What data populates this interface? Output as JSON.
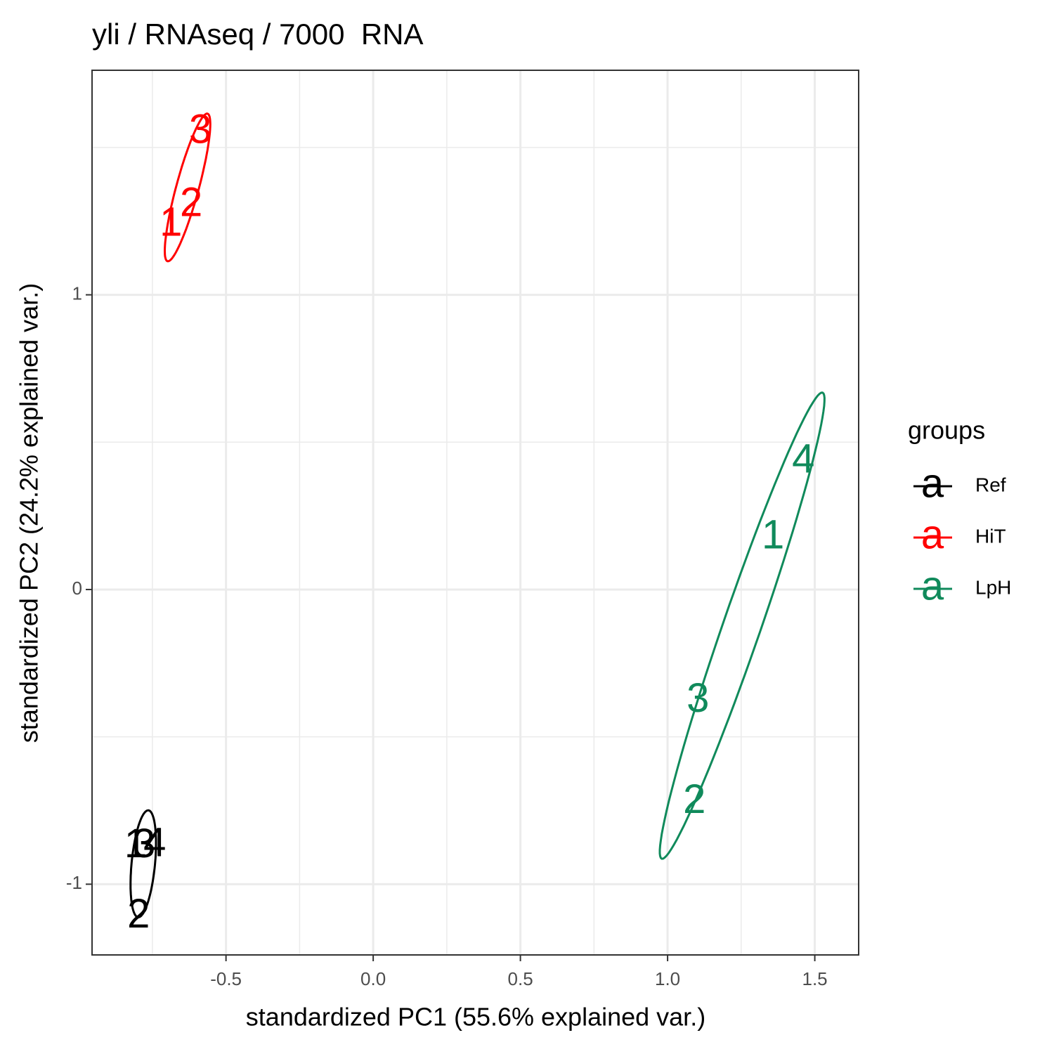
{
  "chart_data": {
    "type": "text-scatter",
    "title": "yli / RNAseq / 7000  RNA",
    "x_label": "standardized PC1 (55.6% explained var.)",
    "y_label": "standardized PC2 (24.2% explained var.)",
    "legend_title": "groups",
    "legend_key": "a",
    "legend_position": "right",
    "grid": true,
    "ellipse": true,
    "xlim": [
      -0.955,
      1.649
    ],
    "ylim": [
      -1.24,
      1.762
    ],
    "xticks": [
      -0.5,
      {
        "value": 0,
        "label": "0.0"
      },
      0.5,
      {
        "value": 1,
        "label": "1.0"
      },
      1.5
    ],
    "yticks": [
      -1,
      0,
      1
    ],
    "x_minor_ticks": [
      -0.75,
      -0.25,
      0.25,
      0.75,
      1.25
    ],
    "y_minor_ticks": [
      -0.5,
      0.5,
      1.5
    ],
    "series": [
      {
        "name": "Ref",
        "color": "#000000",
        "labels": [
          "1",
          "3",
          "4",
          "2"
        ],
        "x": [
          -0.807,
          -0.778,
          -0.742,
          -0.797
        ],
        "y": [
          -0.872,
          -0.872,
          -0.868,
          -1.111
        ]
      },
      {
        "name": "HiT",
        "color": "#ff0000",
        "labels": [
          "1",
          "2",
          "3"
        ],
        "x": [
          -0.687,
          -0.618,
          -0.587
        ],
        "y": [
          1.237,
          1.304,
          1.552
        ]
      },
      {
        "name": "LpH",
        "color": "#108a5b",
        "labels": [
          "4",
          "1",
          "3",
          "2"
        ],
        "x": [
          1.461,
          1.358,
          1.103,
          1.091
        ],
        "y": [
          0.434,
          0.176,
          -0.379,
          -0.722
        ]
      }
    ]
  }
}
